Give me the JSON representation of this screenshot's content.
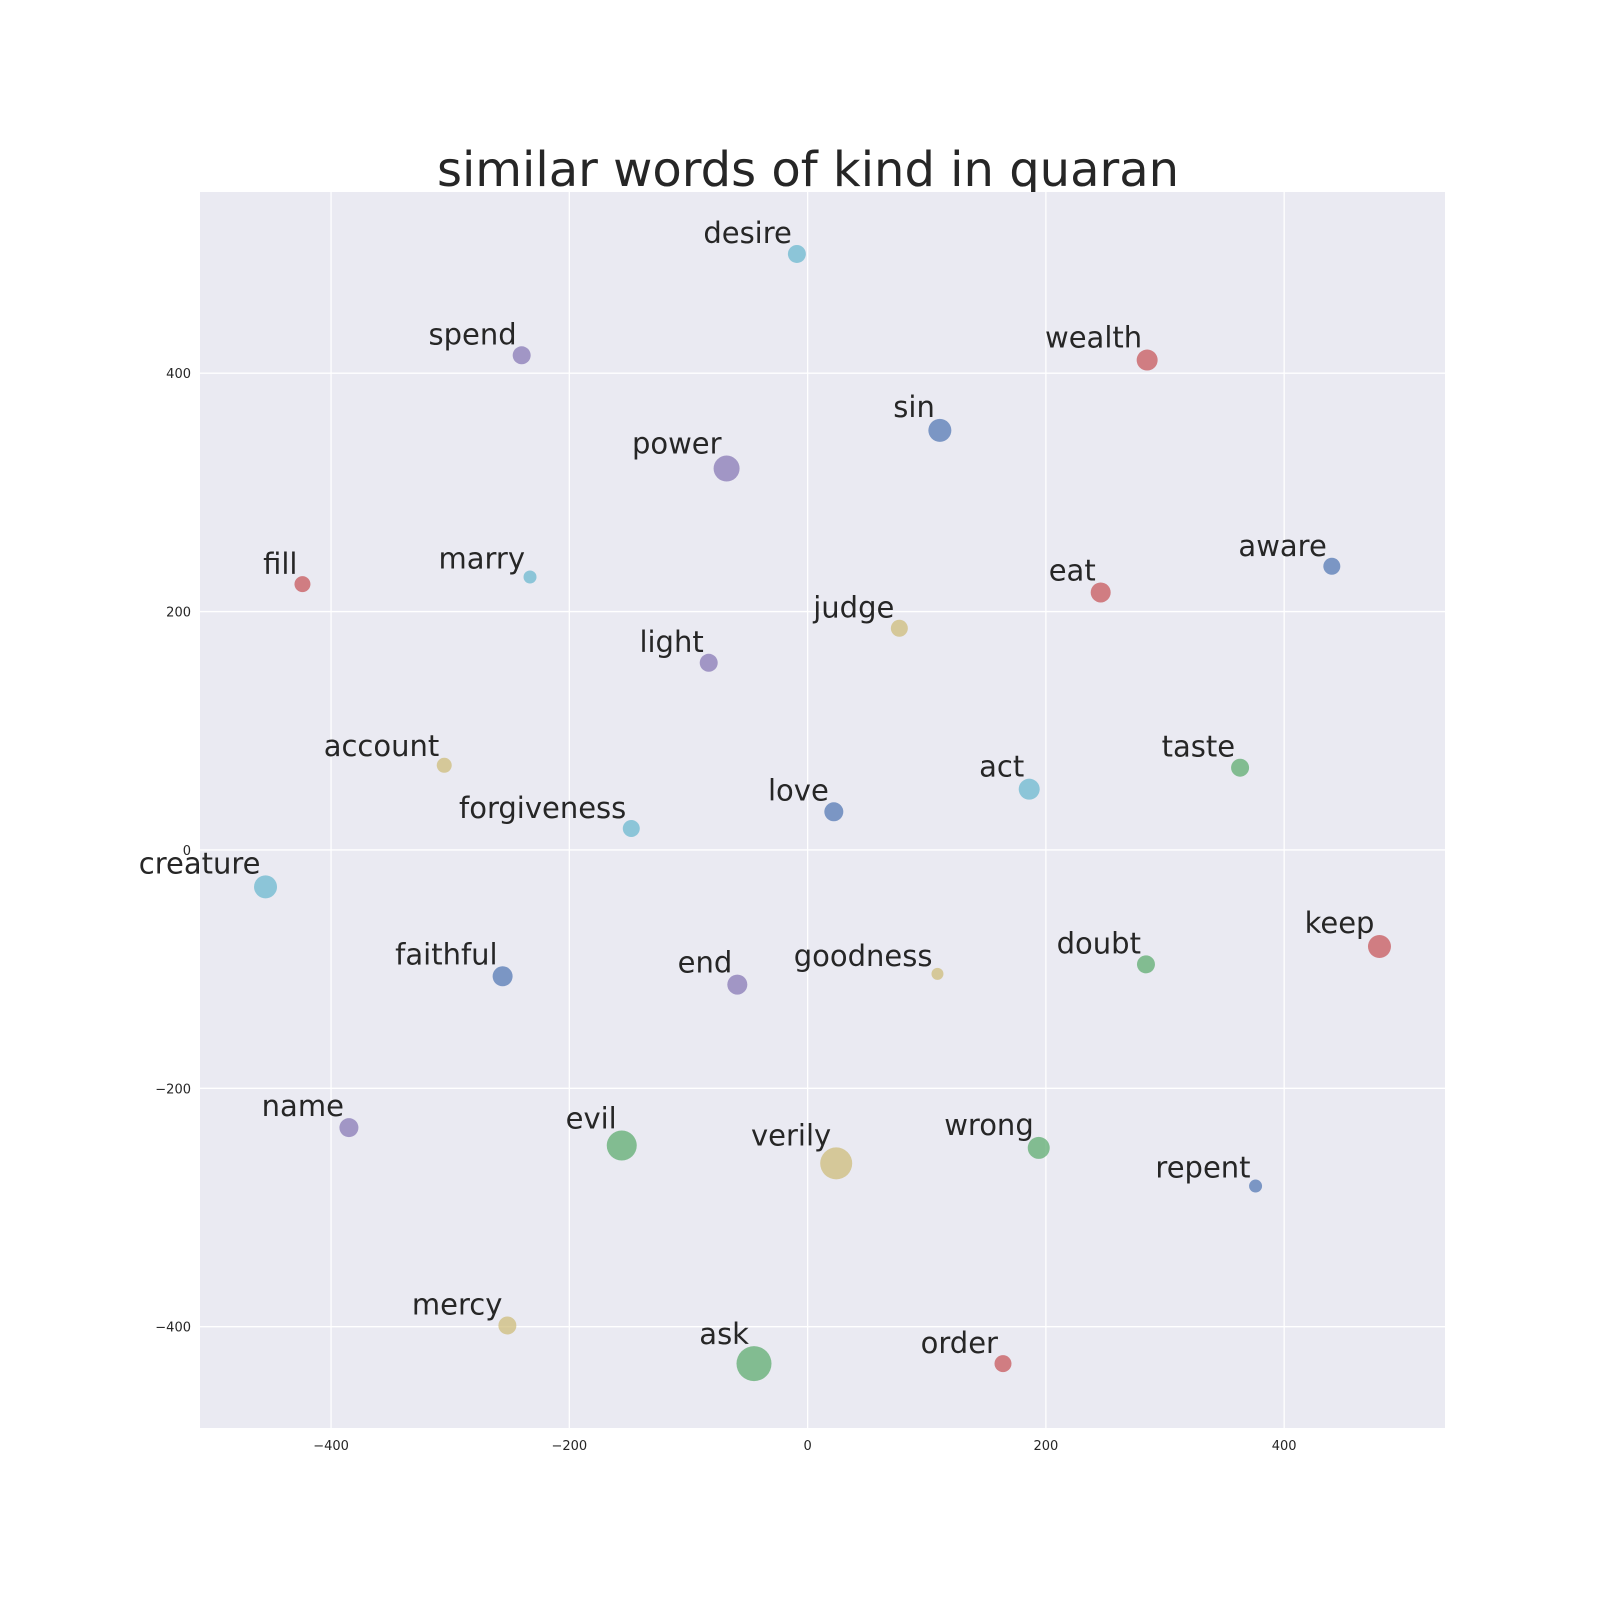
{
  "chart_data": {
    "type": "scatter",
    "title": "similar words of kind in quaran",
    "xlabel": "",
    "ylabel": "",
    "xlim": [
      -510,
      535
    ],
    "ylim": [
      -485,
      552
    ],
    "x_ticks": [
      -400,
      -200,
      0,
      200,
      400
    ],
    "y_ticks": [
      -400,
      -200,
      0,
      200,
      400
    ],
    "x_tick_labels": [
      "−400",
      "−200",
      "0",
      "200",
      "400"
    ],
    "y_tick_labels": [
      "−400",
      "−200",
      "0",
      "200",
      "400"
    ],
    "grid": true,
    "colors": {
      "background": "#eaeaf2",
      "grid": "#ffffff",
      "blue": "#4c72b0",
      "green": "#55a868",
      "red": "#c44e52",
      "purple": "#8172b2",
      "gold": "#ccb974",
      "cyan": "#64b5cd"
    },
    "points": [
      {
        "label": "desire",
        "x": -9,
        "y": 500,
        "color": "cyan",
        "size": 9
      },
      {
        "label": "spend",
        "x": -240,
        "y": 415,
        "color": "purple",
        "size": 9
      },
      {
        "label": "wealth",
        "x": 285,
        "y": 411,
        "color": "red",
        "size": 10.5
      },
      {
        "label": "sin",
        "x": 111,
        "y": 352,
        "color": "blue",
        "size": 11.5
      },
      {
        "label": "power",
        "x": -68,
        "y": 320,
        "color": "purple",
        "size": 13
      },
      {
        "label": "fill",
        "x": -424,
        "y": 223,
        "color": "red",
        "size": 8
      },
      {
        "label": "marry",
        "x": -233,
        "y": 229,
        "color": "cyan",
        "size": 6.5
      },
      {
        "label": "aware",
        "x": 440,
        "y": 238,
        "color": "blue",
        "size": 8.5
      },
      {
        "label": "eat",
        "x": 246,
        "y": 216,
        "color": "red",
        "size": 10
      },
      {
        "label": "judge",
        "x": 77,
        "y": 186,
        "color": "gold",
        "size": 8.5
      },
      {
        "label": "light",
        "x": -83,
        "y": 157,
        "color": "purple",
        "size": 9
      },
      {
        "label": "account",
        "x": -305,
        "y": 71,
        "color": "gold",
        "size": 7.5
      },
      {
        "label": "taste",
        "x": 363,
        "y": 69,
        "color": "green",
        "size": 9
      },
      {
        "label": "act",
        "x": 186,
        "y": 51,
        "color": "cyan",
        "size": 10.5
      },
      {
        "label": "love",
        "x": 22,
        "y": 32,
        "color": "blue",
        "size": 9.5
      },
      {
        "label": "forgiveness",
        "x": -148,
        "y": 18,
        "color": "cyan",
        "size": 8.5
      },
      {
        "label": "creature",
        "x": -455,
        "y": -31,
        "color": "cyan",
        "size": 11.5
      },
      {
        "label": "keep",
        "x": 480,
        "y": -81,
        "color": "red",
        "size": 11.5
      },
      {
        "label": "doubt",
        "x": 284,
        "y": -96,
        "color": "green",
        "size": 9
      },
      {
        "label": "goodness",
        "x": 109,
        "y": -104,
        "color": "gold",
        "size": 6
      },
      {
        "label": "faithful",
        "x": -256,
        "y": -106,
        "color": "blue",
        "size": 10
      },
      {
        "label": "end",
        "x": -59,
        "y": -113,
        "color": "purple",
        "size": 10
      },
      {
        "label": "name",
        "x": -385,
        "y": -233,
        "color": "purple",
        "size": 9.5
      },
      {
        "label": "evil",
        "x": -156,
        "y": -248,
        "color": "green",
        "size": 15
      },
      {
        "label": "wrong",
        "x": 194,
        "y": -250,
        "color": "green",
        "size": 11
      },
      {
        "label": "verily",
        "x": 24,
        "y": -263,
        "color": "gold",
        "size": 16
      },
      {
        "label": "repent",
        "x": 376,
        "y": -282,
        "color": "blue",
        "size": 6.5
      },
      {
        "label": "mercy",
        "x": -252,
        "y": -399,
        "color": "gold",
        "size": 9
      },
      {
        "label": "ask",
        "x": -45,
        "y": -431,
        "color": "green",
        "size": 17.5
      },
      {
        "label": "order",
        "x": 164,
        "y": -431,
        "color": "red",
        "size": 8.5
      }
    ]
  }
}
